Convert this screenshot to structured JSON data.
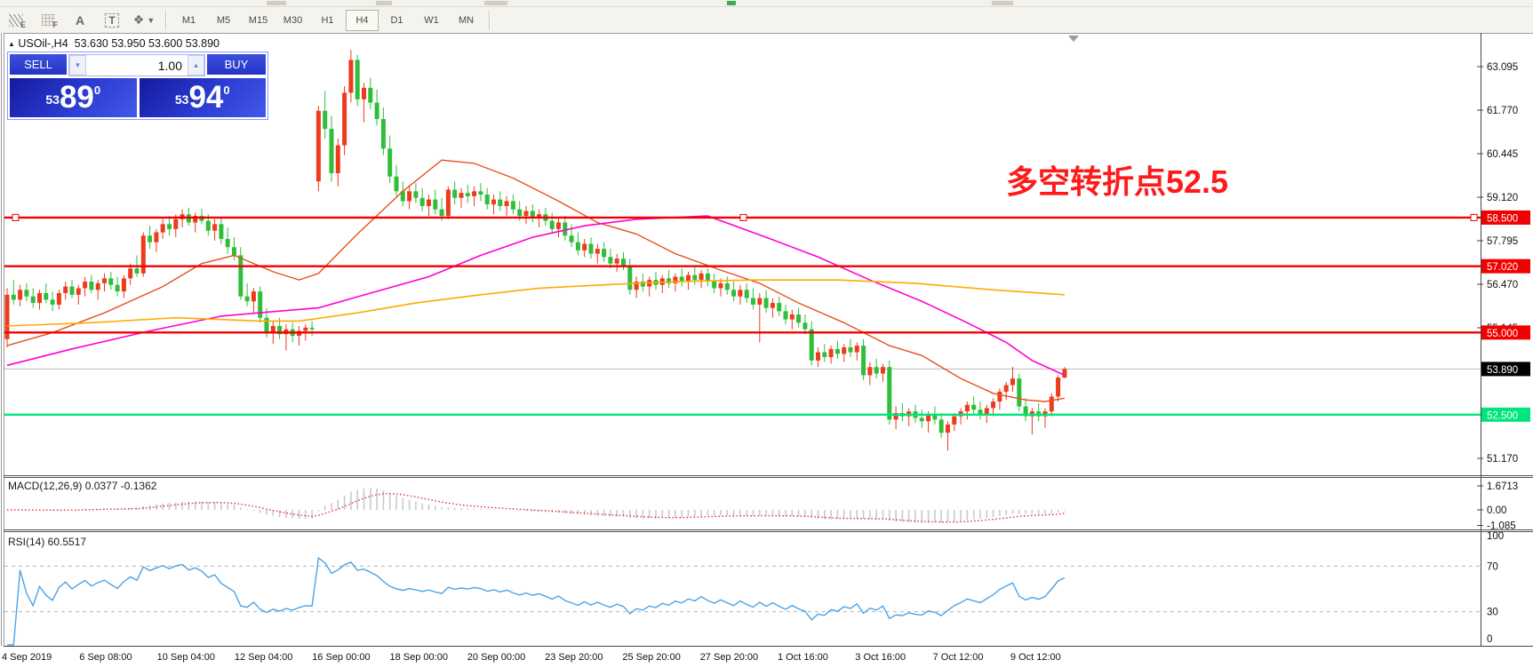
{
  "toolbar": {
    "tools": [
      {
        "name": "expert-pattern-icon",
        "label": "E"
      },
      {
        "name": "grid-icon",
        "label": "F"
      },
      {
        "name": "text-label-icon",
        "label": "A"
      },
      {
        "name": "text-box-icon",
        "label": "T"
      },
      {
        "name": "cycle-arrows-icon",
        "label": "❖"
      }
    ],
    "timeframes": [
      "M1",
      "M5",
      "M15",
      "M30",
      "H1",
      "H4",
      "D1",
      "W1",
      "MN"
    ],
    "active_timeframe": "H4"
  },
  "chart": {
    "title": "USOil-,H4",
    "ohlc_text": "53.630 53.950 53.600 53.890"
  },
  "trade": {
    "sell_label": "SELL",
    "buy_label": "BUY",
    "volume": "1.00",
    "sell_small": "53",
    "sell_big": "89",
    "sell_sup": "0",
    "buy_small": "53",
    "buy_big": "94",
    "buy_sup": "0"
  },
  "annotation": {
    "text": "多空转折点52.5",
    "color": "#ff1a1a"
  },
  "panes": {
    "macd": {
      "label": "MACD(12,26,9) 0.0377 -0.1362"
    },
    "rsi": {
      "label": "RSI(14) 60.5517"
    }
  },
  "chart_data": {
    "type": "candlestick",
    "symbol": "USOil",
    "timeframe": "H4",
    "last_ohlc": {
      "open": 53.63,
      "high": 53.95,
      "low": 53.6,
      "close": 53.89
    },
    "bid": "53.89",
    "ask": "53.94",
    "price_axis_ticks": [
      63.095,
      61.77,
      60.445,
      59.12,
      57.795,
      56.47,
      55.145,
      51.17
    ],
    "horizontal_lines": [
      {
        "price": 58.5,
        "label": "58.500",
        "color": "#f00000",
        "selected": true
      },
      {
        "price": 57.02,
        "label": "57.020",
        "color": "#f00000",
        "selected": false
      },
      {
        "price": 55.0,
        "label": "55.000",
        "color": "#f00000",
        "selected": false
      },
      {
        "price": 52.5,
        "label": "52.500",
        "color": "#00e57d",
        "selected": false
      }
    ],
    "current_price": {
      "value": 53.89,
      "label": "53.890",
      "badge_color": "#000000"
    },
    "bull_color": "#ed3b1e",
    "bear_color": "#2fbe3a",
    "x_axis_labels": [
      "4 Sep 2019",
      "6 Sep 08:00",
      "10 Sep 04:00",
      "12 Sep 04:00",
      "16 Sep 00:00",
      "18 Sep 00:00",
      "20 Sep 00:00",
      "23 Sep 20:00",
      "25 Sep 20:00",
      "27 Sep 20:00",
      "1 Oct 16:00",
      "3 Oct 16:00",
      "7 Oct 12:00",
      "9 Oct 12:00"
    ],
    "bars_ohlc": [
      [
        54.8,
        56.35,
        54.55,
        56.15
      ],
      [
        56.15,
        56.6,
        55.85,
        56.0
      ],
      [
        56.0,
        56.45,
        55.8,
        56.3
      ],
      [
        56.3,
        56.5,
        55.95,
        56.1
      ],
      [
        56.1,
        56.35,
        55.75,
        55.9
      ],
      [
        55.9,
        56.3,
        55.7,
        56.2
      ],
      [
        56.2,
        56.5,
        55.9,
        56.0
      ],
      [
        56.0,
        56.25,
        55.65,
        55.85
      ],
      [
        55.85,
        56.3,
        55.7,
        56.2
      ],
      [
        56.2,
        56.55,
        56.0,
        56.4
      ],
      [
        56.4,
        56.6,
        56.05,
        56.15
      ],
      [
        56.15,
        56.45,
        55.85,
        56.35
      ],
      [
        56.35,
        56.7,
        56.1,
        56.55
      ],
      [
        56.55,
        56.75,
        56.2,
        56.3
      ],
      [
        56.3,
        56.6,
        56.0,
        56.5
      ],
      [
        56.5,
        56.8,
        56.25,
        56.65
      ],
      [
        56.65,
        56.85,
        56.3,
        56.45
      ],
      [
        56.45,
        56.7,
        56.1,
        56.25
      ],
      [
        56.25,
        56.75,
        56.05,
        56.65
      ],
      [
        56.65,
        57.1,
        56.45,
        56.95
      ],
      [
        56.95,
        57.35,
        56.7,
        56.8
      ],
      [
        56.8,
        58.05,
        56.7,
        57.95
      ],
      [
        57.95,
        58.25,
        57.55,
        57.75
      ],
      [
        57.75,
        58.15,
        57.45,
        58.05
      ],
      [
        58.05,
        58.45,
        57.85,
        58.3
      ],
      [
        58.3,
        58.55,
        57.95,
        58.15
      ],
      [
        58.15,
        58.6,
        57.9,
        58.45
      ],
      [
        58.45,
        58.75,
        58.2,
        58.6
      ],
      [
        58.6,
        58.8,
        58.25,
        58.35
      ],
      [
        58.35,
        58.65,
        58.05,
        58.55
      ],
      [
        58.55,
        58.76,
        58.3,
        58.4
      ],
      [
        58.4,
        58.6,
        57.95,
        58.1
      ],
      [
        58.1,
        58.45,
        57.8,
        58.3
      ],
      [
        58.3,
        58.5,
        57.7,
        57.85
      ],
      [
        57.85,
        58.2,
        57.4,
        57.6
      ],
      [
        57.6,
        57.9,
        57.2,
        57.35
      ],
      [
        57.35,
        57.6,
        56.0,
        56.1
      ],
      [
        56.1,
        56.5,
        55.8,
        55.95
      ],
      [
        55.95,
        56.35,
        55.6,
        56.25
      ],
      [
        56.25,
        56.4,
        55.3,
        55.45
      ],
      [
        55.45,
        55.75,
        54.85,
        55.0
      ],
      [
        55.0,
        55.35,
        54.65,
        55.2
      ],
      [
        55.2,
        55.45,
        54.8,
        54.95
      ],
      [
        54.95,
        55.25,
        54.45,
        55.1
      ],
      [
        55.1,
        55.3,
        54.7,
        54.9
      ],
      [
        54.9,
        55.2,
        54.6,
        55.05
      ],
      [
        55.05,
        55.25,
        54.75,
        55.15
      ],
      [
        55.15,
        55.35,
        54.9,
        55.1
      ],
      [
        59.6,
        61.9,
        59.3,
        61.75
      ],
      [
        61.75,
        62.35,
        60.9,
        61.2
      ],
      [
        61.2,
        61.6,
        59.6,
        59.85
      ],
      [
        59.85,
        60.9,
        59.45,
        60.7
      ],
      [
        60.7,
        62.5,
        60.4,
        62.3
      ],
      [
        62.3,
        63.6,
        62.0,
        63.3
      ],
      [
        63.3,
        63.45,
        61.9,
        62.1
      ],
      [
        62.1,
        62.6,
        61.4,
        62.45
      ],
      [
        62.45,
        62.75,
        61.8,
        62.0
      ],
      [
        62.0,
        62.4,
        61.3,
        61.5
      ],
      [
        61.5,
        61.85,
        60.4,
        60.6
      ],
      [
        60.6,
        61.0,
        59.55,
        59.75
      ],
      [
        59.75,
        60.1,
        59.15,
        59.3
      ],
      [
        59.3,
        59.6,
        58.85,
        59.0
      ],
      [
        59.0,
        59.45,
        58.75,
        59.3
      ],
      [
        59.3,
        59.55,
        58.95,
        59.1
      ],
      [
        59.1,
        59.4,
        58.7,
        58.85
      ],
      [
        58.85,
        59.2,
        58.55,
        59.05
      ],
      [
        59.05,
        59.35,
        58.6,
        58.75
      ],
      [
        58.75,
        59.1,
        58.4,
        58.55
      ],
      [
        58.55,
        59.45,
        58.45,
        59.35
      ],
      [
        59.35,
        59.6,
        58.9,
        59.1
      ],
      [
        59.1,
        59.4,
        58.8,
        59.25
      ],
      [
        59.25,
        59.5,
        58.95,
        59.15
      ],
      [
        59.15,
        59.45,
        58.85,
        59.3
      ],
      [
        59.3,
        59.55,
        59.0,
        59.2
      ],
      [
        59.2,
        59.4,
        58.75,
        58.9
      ],
      [
        58.9,
        59.2,
        58.6,
        59.05
      ],
      [
        59.05,
        59.3,
        58.7,
        58.85
      ],
      [
        58.85,
        59.15,
        58.55,
        59.0
      ],
      [
        59.0,
        59.2,
        58.6,
        58.75
      ],
      [
        58.75,
        59.0,
        58.4,
        58.55
      ],
      [
        58.55,
        58.85,
        58.3,
        58.7
      ],
      [
        58.7,
        58.9,
        58.35,
        58.5
      ],
      [
        58.5,
        58.75,
        58.2,
        58.6
      ],
      [
        58.6,
        58.8,
        58.25,
        58.4
      ],
      [
        58.4,
        58.65,
        58.0,
        58.15
      ],
      [
        58.15,
        58.5,
        57.9,
        58.35
      ],
      [
        58.35,
        58.55,
        57.8,
        57.95
      ],
      [
        57.95,
        58.3,
        57.6,
        57.75
      ],
      [
        57.75,
        58.05,
        57.35,
        57.5
      ],
      [
        57.5,
        57.85,
        57.3,
        57.7
      ],
      [
        57.7,
        57.9,
        57.25,
        57.4
      ],
      [
        57.4,
        57.7,
        57.1,
        57.55
      ],
      [
        57.55,
        57.75,
        57.15,
        57.3
      ],
      [
        57.3,
        57.55,
        56.95,
        57.1
      ],
      [
        57.1,
        57.4,
        56.85,
        57.25
      ],
      [
        57.25,
        57.45,
        56.9,
        57.05
      ],
      [
        57.05,
        57.25,
        56.15,
        56.3
      ],
      [
        56.3,
        56.7,
        56.05,
        56.55
      ],
      [
        56.55,
        56.8,
        56.25,
        56.4
      ],
      [
        56.4,
        56.7,
        56.1,
        56.6
      ],
      [
        56.6,
        56.85,
        56.3,
        56.45
      ],
      [
        56.45,
        56.75,
        56.2,
        56.65
      ],
      [
        56.65,
        56.9,
        56.35,
        56.5
      ],
      [
        56.5,
        56.8,
        56.25,
        56.7
      ],
      [
        56.7,
        56.95,
        56.4,
        56.55
      ],
      [
        56.55,
        56.85,
        56.3,
        56.75
      ],
      [
        56.75,
        57.0,
        56.45,
        56.6
      ],
      [
        56.6,
        56.9,
        56.35,
        56.8
      ],
      [
        56.8,
        56.95,
        56.4,
        56.55
      ],
      [
        56.55,
        56.8,
        56.2,
        56.35
      ],
      [
        56.35,
        56.65,
        56.1,
        56.5
      ],
      [
        56.5,
        56.7,
        56.15,
        56.3
      ],
      [
        56.3,
        56.55,
        55.95,
        56.1
      ],
      [
        56.1,
        56.45,
        55.85,
        56.3
      ],
      [
        56.3,
        56.5,
        55.9,
        56.05
      ],
      [
        56.05,
        56.35,
        55.7,
        55.85
      ],
      [
        55.85,
        56.2,
        54.7,
        56.05
      ],
      [
        56.05,
        56.3,
        55.6,
        55.75
      ],
      [
        55.75,
        56.05,
        55.45,
        55.9
      ],
      [
        55.9,
        56.1,
        55.5,
        55.65
      ],
      [
        55.65,
        55.85,
        55.25,
        55.4
      ],
      [
        55.4,
        55.7,
        55.1,
        55.55
      ],
      [
        55.55,
        55.75,
        55.15,
        55.3
      ],
      [
        55.3,
        55.55,
        54.95,
        55.1
      ],
      [
        55.1,
        55.35,
        54.0,
        54.15
      ],
      [
        54.15,
        54.55,
        53.95,
        54.4
      ],
      [
        54.4,
        54.65,
        54.1,
        54.25
      ],
      [
        54.25,
        54.6,
        54.05,
        54.5
      ],
      [
        54.5,
        54.75,
        54.2,
        54.35
      ],
      [
        54.35,
        54.65,
        54.1,
        54.55
      ],
      [
        54.55,
        54.8,
        54.25,
        54.4
      ],
      [
        54.4,
        54.7,
        54.15,
        54.6
      ],
      [
        54.6,
        54.8,
        53.55,
        53.7
      ],
      [
        53.7,
        54.1,
        53.4,
        53.95
      ],
      [
        53.95,
        54.2,
        53.6,
        53.75
      ],
      [
        53.75,
        54.05,
        53.5,
        53.95
      ],
      [
        53.95,
        54.15,
        52.2,
        52.35
      ],
      [
        52.35,
        52.75,
        52.05,
        52.55
      ],
      [
        52.55,
        52.85,
        52.3,
        52.45
      ],
      [
        52.45,
        52.7,
        52.15,
        52.6
      ],
      [
        52.6,
        52.8,
        52.25,
        52.4
      ],
      [
        52.4,
        52.65,
        52.1,
        52.3
      ],
      [
        52.3,
        52.6,
        51.95,
        52.5
      ],
      [
        52.5,
        52.75,
        52.2,
        52.35
      ],
      [
        52.35,
        52.55,
        51.8,
        51.95
      ],
      [
        51.95,
        52.3,
        51.4,
        52.2
      ],
      [
        52.2,
        52.55,
        52.0,
        52.45
      ],
      [
        52.45,
        52.7,
        52.2,
        52.6
      ],
      [
        52.6,
        52.9,
        52.35,
        52.8
      ],
      [
        52.8,
        53.05,
        52.5,
        52.65
      ],
      [
        52.65,
        52.9,
        52.35,
        52.5
      ],
      [
        52.5,
        52.8,
        52.25,
        52.7
      ],
      [
        52.7,
        53.0,
        52.45,
        52.9
      ],
      [
        52.9,
        53.3,
        52.65,
        53.2
      ],
      [
        53.2,
        53.5,
        52.95,
        53.4
      ],
      [
        53.4,
        53.95,
        53.2,
        53.6
      ],
      [
        53.6,
        53.75,
        52.6,
        52.75
      ],
      [
        52.75,
        53.0,
        52.3,
        52.45
      ],
      [
        52.45,
        52.7,
        51.9,
        52.6
      ],
      [
        52.6,
        52.85,
        52.3,
        52.45
      ],
      [
        52.45,
        52.7,
        52.1,
        52.6
      ],
      [
        52.6,
        53.15,
        52.45,
        53.05
      ],
      [
        53.05,
        53.7,
        52.9,
        53.63
      ],
      [
        53.63,
        53.95,
        53.6,
        53.89
      ]
    ],
    "overlays": {
      "ma_fast": {
        "color": "#e8501e",
        "points": [
          [
            0,
            54.6
          ],
          [
            7,
            55.0
          ],
          [
            15,
            55.6
          ],
          [
            24,
            56.4
          ],
          [
            30,
            57.1
          ],
          [
            35,
            57.35
          ],
          [
            41,
            56.85
          ],
          [
            45,
            56.6
          ],
          [
            48,
            56.8
          ],
          [
            54,
            58.0
          ],
          [
            61,
            59.3
          ],
          [
            67,
            60.25
          ],
          [
            72,
            60.15
          ],
          [
            78,
            59.7
          ],
          [
            85,
            59.0
          ],
          [
            91,
            58.35
          ],
          [
            97,
            58.0
          ],
          [
            103,
            57.4
          ],
          [
            110,
            56.9
          ],
          [
            116,
            56.5
          ],
          [
            122,
            55.9
          ],
          [
            129,
            55.3
          ],
          [
            136,
            54.6
          ],
          [
            141,
            54.3
          ],
          [
            147,
            53.6
          ],
          [
            152,
            53.15
          ],
          [
            157,
            52.95
          ],
          [
            160,
            52.9
          ],
          [
            163,
            53.0
          ]
        ]
      },
      "ma_mid": {
        "color": "#ff00d0",
        "points": [
          [
            0,
            54.0
          ],
          [
            10,
            54.5
          ],
          [
            22,
            55.05
          ],
          [
            33,
            55.5
          ],
          [
            40,
            55.62
          ],
          [
            48,
            55.75
          ],
          [
            56,
            56.2
          ],
          [
            65,
            56.7
          ],
          [
            73,
            57.35
          ],
          [
            81,
            57.9
          ],
          [
            89,
            58.25
          ],
          [
            97,
            58.45
          ],
          [
            108,
            58.55
          ],
          [
            117,
            57.9
          ],
          [
            125,
            57.3
          ],
          [
            133,
            56.6
          ],
          [
            141,
            55.95
          ],
          [
            148,
            55.3
          ],
          [
            154,
            54.7
          ],
          [
            158,
            54.15
          ],
          [
            163,
            53.7
          ]
        ]
      },
      "ma_slow": {
        "color": "#ffaa00",
        "points": [
          [
            0,
            55.2
          ],
          [
            13,
            55.3
          ],
          [
            26,
            55.45
          ],
          [
            39,
            55.35
          ],
          [
            45,
            55.35
          ],
          [
            54,
            55.6
          ],
          [
            63,
            55.9
          ],
          [
            73,
            56.15
          ],
          [
            82,
            56.35
          ],
          [
            92,
            56.45
          ],
          [
            103,
            56.55
          ],
          [
            115,
            56.6
          ],
          [
            128,
            56.6
          ],
          [
            140,
            56.5
          ],
          [
            152,
            56.3
          ],
          [
            163,
            56.15
          ]
        ]
      }
    },
    "indicators": [
      {
        "name": "MACD",
        "params": "12,26,9",
        "values_text": "0.0377 -0.1362",
        "axis_labels": [
          "1.6713",
          "0.00",
          "-1.085"
        ],
        "histogram_color": "#c9c9c9",
        "signal_color": "#e03131"
      },
      {
        "name": "RSI",
        "params": "14",
        "value_text": "60.5517",
        "axis_labels": [
          "100",
          "70",
          "30",
          "0"
        ],
        "levels": [
          70,
          30
        ],
        "line_color": "#4aa3e8"
      }
    ]
  }
}
